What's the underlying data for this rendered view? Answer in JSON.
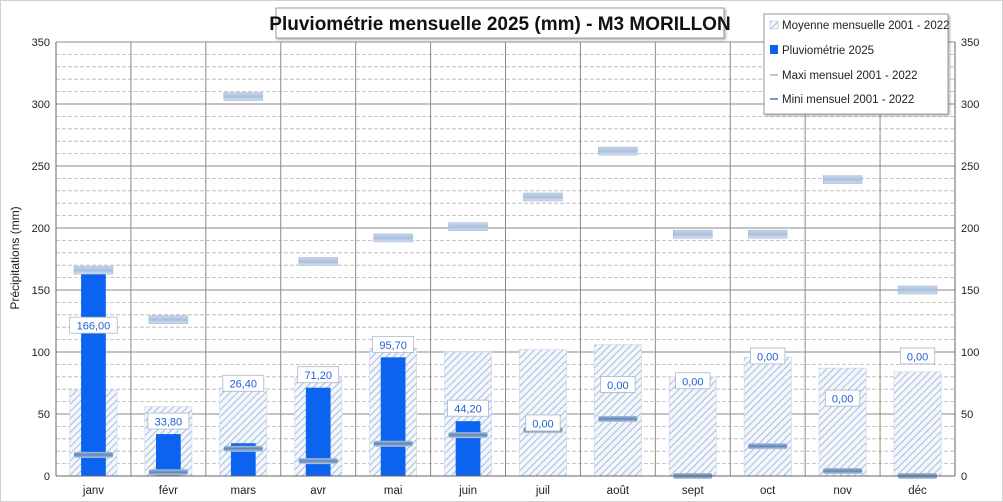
{
  "chart_data": {
    "type": "bar",
    "title": "Pluviométrie mensuelle 2025 (mm) - M3 MORILLON",
    "ylabel": "Précipitations (mm)",
    "ylim": [
      0,
      350
    ],
    "yticks": [
      0,
      50,
      100,
      150,
      200,
      250,
      300,
      350
    ],
    "grid": true,
    "legend_position": "top-right",
    "categories": [
      "janv",
      "févr",
      "mars",
      "avr",
      "mai",
      "juin",
      "juil",
      "août",
      "sept",
      "oct",
      "nov",
      "déc"
    ],
    "series": [
      {
        "name": "Moyenne mensuelle 2001 - 2022",
        "kind": "hatched-bar",
        "color": "#9fb7d9",
        "values": [
          69,
          56,
          71,
          79,
          103,
          100,
          102,
          106,
          80,
          96,
          87,
          84
        ]
      },
      {
        "name": "Pluviométrie 2025",
        "kind": "bar",
        "color": "#0b63f0",
        "values": [
          166.0,
          33.8,
          26.4,
          71.2,
          95.7,
          44.2,
          0.0,
          0.0,
          0.0,
          0.0,
          0.0,
          0.0
        ]
      },
      {
        "name": "Maxi mensuel 2001 - 2022",
        "kind": "marker",
        "color": "#b6c9e3",
        "values": [
          166,
          126,
          306,
          173,
          192,
          201,
          225,
          262,
          195,
          195,
          239,
          150
        ]
      },
      {
        "name": "Mini mensuel 2001 - 2022",
        "kind": "marker",
        "color": "#7d9cc4",
        "values": [
          17,
          3,
          22,
          12,
          26,
          33,
          37,
          46,
          0,
          24,
          4,
          0
        ]
      }
    ],
    "data_labels": [
      "166,00",
      "33,80",
      "26,40",
      "71,20",
      "95,70",
      "44,20",
      "0,00",
      "0,00",
      "0,00",
      "0,00",
      "0,00",
      "0,00"
    ]
  }
}
